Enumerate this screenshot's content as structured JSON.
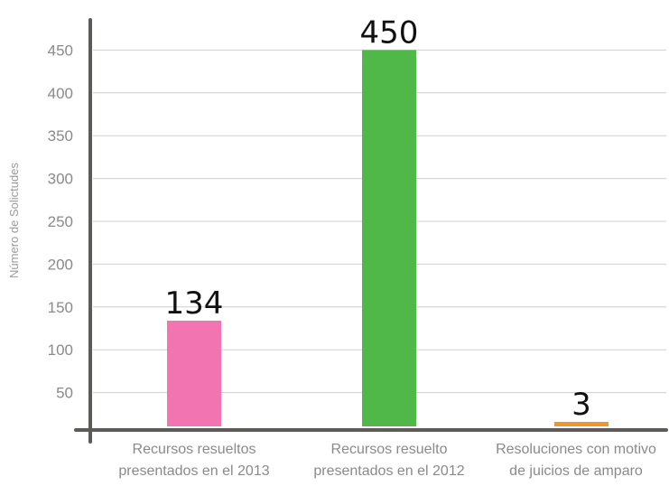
{
  "chart_data": {
    "type": "bar",
    "title": "",
    "xlabel": "",
    "ylabel": "Número de Solictudes",
    "ylim": [
      0,
      450
    ],
    "yticks": [
      50,
      100,
      150,
      200,
      250,
      300,
      350,
      400,
      450
    ],
    "grid": true,
    "legend": "none",
    "categories": [
      [
        "Recursos resueltos",
        "presentados en el 2013"
      ],
      [
        "Recursos resuelto",
        "presentados en el 2012"
      ],
      [
        "Resoluciones con motivo",
        "de juicios de amparo"
      ]
    ],
    "values": [
      134,
      450,
      3
    ],
    "data_labels": [
      "134",
      "450",
      "3"
    ],
    "colors": [
      "#f274b0",
      "#4fb848",
      "#f0962a"
    ]
  }
}
